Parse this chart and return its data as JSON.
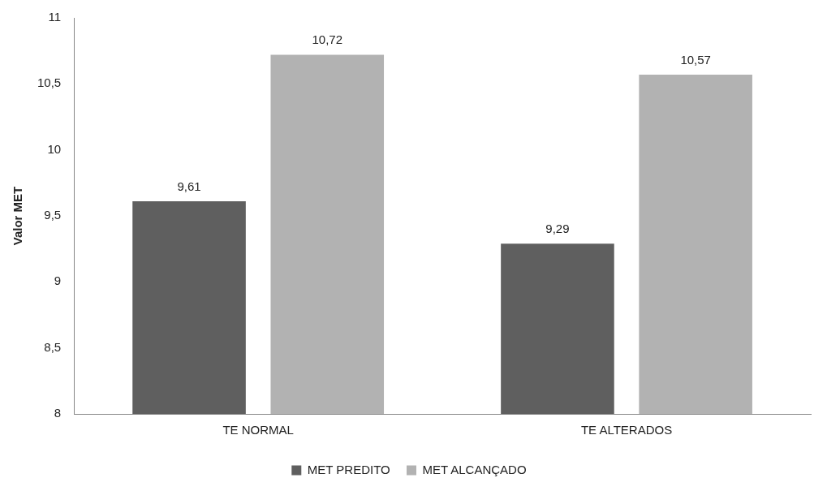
{
  "chart_data": {
    "type": "bar",
    "ylabel": "Valor MET",
    "categories": [
      "TE NORMAL",
      "TE ALTERADOS"
    ],
    "series": [
      {
        "name": "MET PREDITO",
        "color": "#5f5f5f",
        "values": [
          9.61,
          9.29
        ],
        "value_labels": [
          "9,61",
          "9,29"
        ]
      },
      {
        "name": "MET ALCANÇADO",
        "color": "#b2b2b2",
        "values": [
          10.72,
          10.57
        ],
        "value_labels": [
          "10,72",
          "10,57"
        ]
      }
    ],
    "ylim": [
      8,
      11
    ],
    "yticks": [
      8,
      {
        "value": 8.5,
        "label": "8,5"
      },
      9,
      {
        "value": 9.5,
        "label": "9,5"
      },
      10,
      {
        "value": 10.5,
        "label": "10,5"
      },
      11
    ],
    "grid": false,
    "legend": "bottom"
  }
}
